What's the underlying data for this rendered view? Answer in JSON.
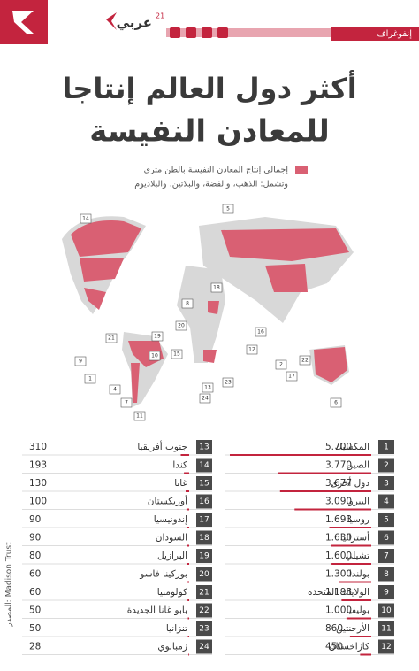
{
  "header": {
    "section": "إنفوغراف",
    "brand": "عربي",
    "brand_sup": "21"
  },
  "title": {
    "line1": "أكثر دول العالم إنتاجا",
    "line2": "للمعادن النفيسة"
  },
  "legend": {
    "line1": "إجمالي إنتاج المعادن النفيسة بالطن متري",
    "line2": "وتشمل: الذهب، والفضة، والبلاتين، والبلاديوم"
  },
  "source": "المصدر: Madison Trust",
  "items": [
    {
      "rank": 1,
      "name": "المكسيك",
      "value": 5700,
      "label": "5.700"
    },
    {
      "rank": 2,
      "name": "الصين",
      "value": 3770,
      "label": "3.770"
    },
    {
      "rank": 3,
      "name": "دول أخرى",
      "value": 3677,
      "label": "3.677"
    },
    {
      "rank": 4,
      "name": "البيرو",
      "value": 3090,
      "label": "3.090"
    },
    {
      "rank": 5,
      "name": "روسيا",
      "value": 1693,
      "label": "1.693"
    },
    {
      "rank": 6,
      "name": "أستراليا",
      "value": 1630,
      "label": "1.630"
    },
    {
      "rank": 7,
      "name": "تشيلي",
      "value": 1600,
      "label": "1.600"
    },
    {
      "rank": 8,
      "name": "بولندا",
      "value": 1300,
      "label": "1.300"
    },
    {
      "rank": 9,
      "name": "الولايات المتحدة",
      "value": 1198,
      "label": "1.198"
    },
    {
      "rank": 10,
      "name": "بوليفيا",
      "value": 1000,
      "label": "1.000"
    },
    {
      "rank": 11,
      "name": "الأرجنتين",
      "value": 860
    },
    {
      "rank": 12,
      "name": "كازاخستان",
      "value": 450
    },
    {
      "rank": 13,
      "name": "جنوب أفريقيا",
      "value": 310
    },
    {
      "rank": 14,
      "name": "كندا",
      "value": 193
    },
    {
      "rank": 15,
      "name": "غانا",
      "value": 130
    },
    {
      "rank": 16,
      "name": "أوزبكستان",
      "value": 100
    },
    {
      "rank": 17,
      "name": "إندونيسيا",
      "value": 90
    },
    {
      "rank": 18,
      "name": "السودان",
      "value": 90
    },
    {
      "rank": 19,
      "name": "البرازيل",
      "value": 80
    },
    {
      "rank": 20,
      "name": "بوركينا فاسو",
      "value": 60
    },
    {
      "rank": 21,
      "name": "كولومبيا",
      "value": 60
    },
    {
      "rank": 22,
      "name": "بابو غانا الجديدة",
      "value": 50
    },
    {
      "rank": 23,
      "name": "تنزانيا",
      "value": 50
    },
    {
      "rank": 24,
      "name": "زمبابوي",
      "value": 28
    }
  ]
}
